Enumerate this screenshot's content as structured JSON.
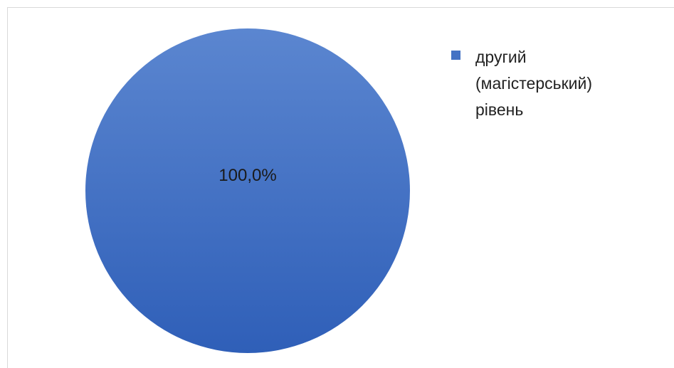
{
  "chart_data": {
    "type": "pie",
    "categories": [
      "другий\n(магістерський)\nрівень"
    ],
    "values": [
      100.0
    ],
    "data_labels": [
      "100,0%"
    ],
    "colors": [
      "#4472c4"
    ],
    "gradient": {
      "top": "#5b86d0",
      "bottom": "#2f5fb8"
    },
    "legend_position": "right"
  }
}
